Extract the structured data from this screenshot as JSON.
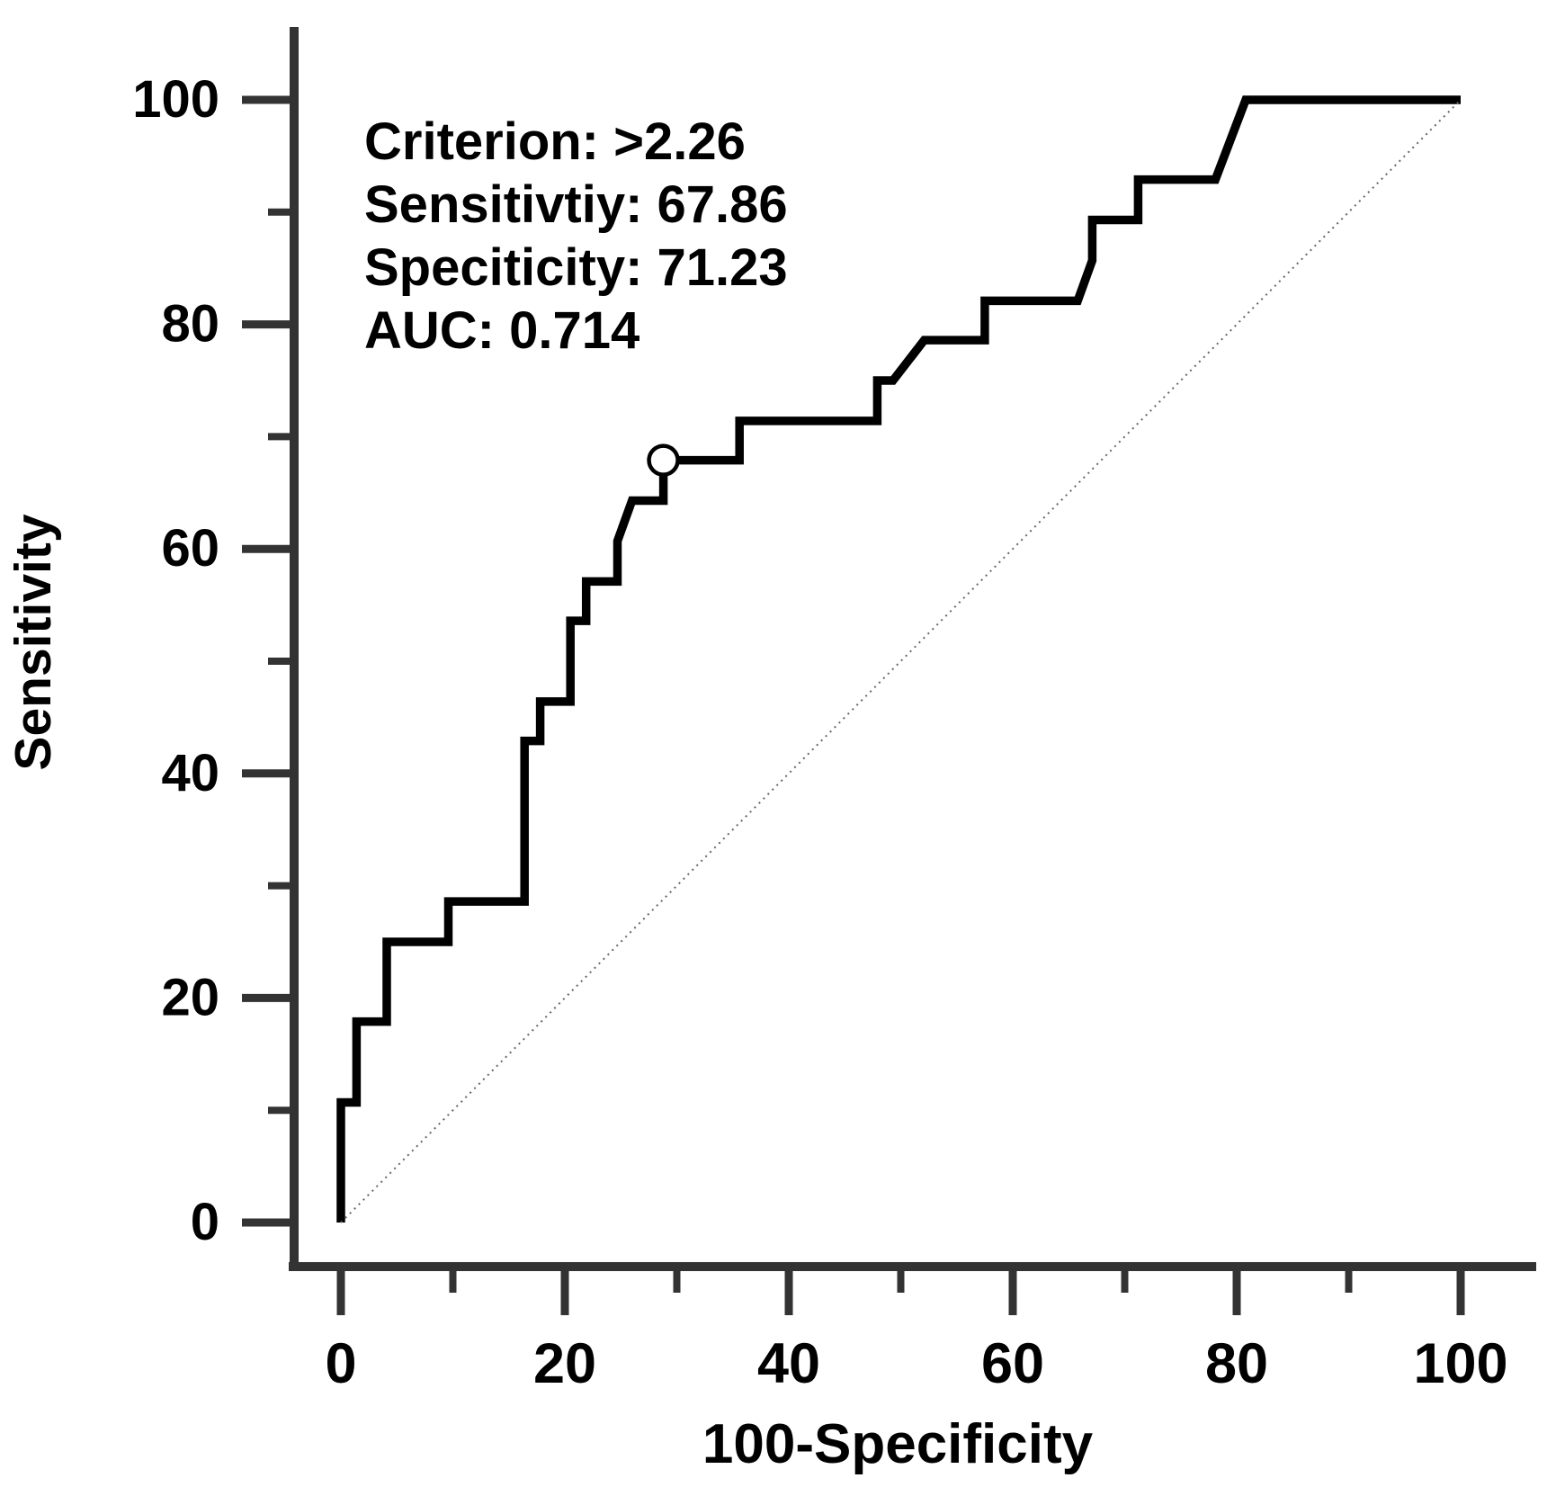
{
  "chart_data": {
    "type": "line",
    "subtype": "roc_step_curve",
    "title": "",
    "xlabel": "100-Specificity",
    "ylabel": "Sensitivity",
    "xlim": [
      0,
      100
    ],
    "ylim": [
      0,
      100
    ],
    "grid": false,
    "legend": "none",
    "xticks_major": [
      0,
      20,
      40,
      60,
      80,
      100
    ],
    "xticks_minor": [
      10,
      30,
      50,
      70,
      90
    ],
    "yticks_major": [
      0,
      20,
      40,
      60,
      80,
      100
    ],
    "yticks_minor": [
      10,
      30,
      50,
      70,
      90
    ],
    "annotation_lines": [
      "Criterion: >2.26",
      "Sensitivtiy: 67.86",
      "Speciticity: 71.23",
      "AUC: 0.714"
    ],
    "series": [
      {
        "name": "ROC curve",
        "type": "step",
        "color": "#000000",
        "points": [
          [
            0,
            0
          ],
          [
            0,
            10.7
          ],
          [
            1.4,
            10.7
          ],
          [
            1.4,
            17.9
          ],
          [
            4.1,
            17.9
          ],
          [
            4.1,
            25
          ],
          [
            9.6,
            25
          ],
          [
            9.6,
            28.6
          ],
          [
            16.4,
            28.6
          ],
          [
            16.4,
            42.9
          ],
          [
            17.8,
            42.9
          ],
          [
            17.8,
            46.4
          ],
          [
            20.5,
            46.4
          ],
          [
            20.5,
            53.6
          ],
          [
            21.9,
            53.6
          ],
          [
            21.9,
            57.1
          ],
          [
            24.7,
            57.1
          ],
          [
            24.7,
            60.7
          ],
          [
            26,
            64.3
          ],
          [
            28.8,
            64.3
          ],
          [
            28.8,
            67.9
          ],
          [
            35.6,
            67.9
          ],
          [
            35.6,
            71.4
          ],
          [
            47.9,
            71.4
          ],
          [
            47.9,
            75
          ],
          [
            49.3,
            75
          ],
          [
            52.1,
            78.6
          ],
          [
            57.5,
            78.6
          ],
          [
            57.5,
            82.1
          ],
          [
            65.8,
            82.1
          ],
          [
            67.1,
            85.7
          ],
          [
            67.1,
            89.3
          ],
          [
            71.2,
            89.3
          ],
          [
            71.2,
            92.9
          ],
          [
            78.1,
            92.9
          ],
          [
            80.8,
            100
          ],
          [
            100,
            100
          ]
        ]
      },
      {
        "name": "chance diagonal",
        "type": "reference_line",
        "style": "dotted",
        "color": "#666666",
        "points": [
          [
            0,
            0
          ],
          [
            100,
            100
          ]
        ]
      }
    ],
    "operating_point": {
      "x": 28.8,
      "y": 67.9,
      "marker": "open-circle",
      "fill": "#ffffff",
      "stroke": "#000000"
    },
    "colors": {
      "axis": "#333333",
      "curve": "#000000",
      "text": "#000000",
      "background": "#ffffff"
    }
  }
}
